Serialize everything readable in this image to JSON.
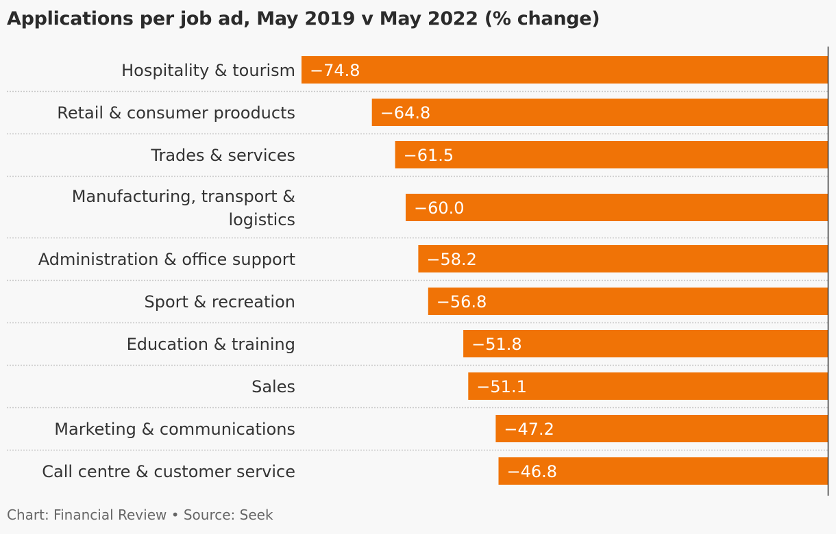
{
  "title": "Applications per job ad, May 2019 v May 2022 (% change)",
  "footer": "Chart: Financial Review • Source: Seek",
  "colors": {
    "bar": "#f07306",
    "separator": "#c8c8c8",
    "axis": "#333333",
    "background": "#f8f8f8"
  },
  "chart_data": {
    "type": "bar",
    "orientation": "horizontal",
    "title": "Applications per job ad, May 2019 v May 2022 (% change)",
    "categories": [
      "Hospitality & tourism",
      "Retail & consumer prooducts",
      "Trades & services",
      "Manufacturing, transport & logistics",
      "Administration & office support",
      "Sport & recreation",
      "Education & training",
      "Sales",
      "Marketing & communications",
      "Call centre & customer service"
    ],
    "values": [
      -74.8,
      -64.8,
      -61.5,
      -60.0,
      -58.2,
      -56.8,
      -51.8,
      -51.1,
      -47.2,
      -46.8
    ],
    "value_labels": [
      "−74.8",
      "−64.8",
      "−61.5",
      "−60.0",
      "−58.2",
      "−56.8",
      "−51.8",
      "−51.1",
      "−47.2",
      "−46.8"
    ],
    "label_lines": [
      [
        "Hospitality & tourism"
      ],
      [
        "Retail & consumer prooducts"
      ],
      [
        "Trades & services"
      ],
      [
        "Manufacturing, transport &",
        "logistics"
      ],
      [
        "Administration & office support"
      ],
      [
        "Sport & recreation"
      ],
      [
        "Education & training"
      ],
      [
        "Sales"
      ],
      [
        "Marketing & communications"
      ],
      [
        "Call centre & customer service"
      ]
    ],
    "xlim": [
      -74.8,
      0
    ],
    "grid": false
  }
}
